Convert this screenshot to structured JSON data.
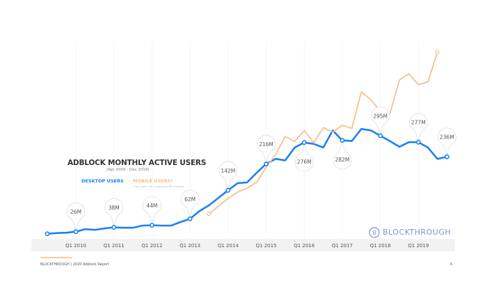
{
  "chart_data": {
    "type": "line",
    "title": "ADBLOCK MONTHLY ACTIVE USERS",
    "subtitle": "(Apr 2009 - Dec 2019)",
    "x_start_year": 2009.25,
    "x_step": 0.25,
    "tick_labels": [
      "Q1 2010",
      "Q1 2011",
      "Q1 2012",
      "Q1 2013",
      "Q1 2014",
      "Q1 2015",
      "Q1 2016",
      "Q1 2017",
      "Q1 2018",
      "Q1 2019"
    ],
    "tick_years": [
      2010,
      2011,
      2012,
      2013,
      2014,
      2015,
      2016,
      2017,
      2018,
      2019
    ],
    "ylim": [
      0,
      560
    ],
    "grid": "vertical",
    "series": [
      {
        "name": "DESKTOP USERS",
        "color": "#1a82f0",
        "start_index": 0,
        "values": [
          20,
          22,
          23,
          26,
          33,
          31,
          35,
          38,
          37,
          37,
          43,
          44,
          43,
          43,
          53,
          62,
          84,
          100,
          121,
          142,
          162,
          164,
          191,
          216,
          230,
          226,
          262,
          276,
          272,
          262,
          310,
          282,
          280,
          314,
          310,
          295,
          280,
          264,
          277,
          277,
          262,
          230,
          236
        ]
      },
      {
        "name": "MOBILE USERS*",
        "color": "#f8bf8c",
        "start_index": 17,
        "values": [
          76,
          98,
          119,
          137,
          148,
          164,
          207,
          242,
          293,
          279,
          310,
          275,
          318,
          305,
          324,
          316,
          418,
          396,
          363,
          357,
          451,
          469,
          438,
          446,
          529
        ]
      }
    ],
    "annotations": [
      {
        "index": 3,
        "label": "26M",
        "pos": "above"
      },
      {
        "index": 7,
        "label": "38M",
        "pos": "above"
      },
      {
        "index": 11,
        "label": "44M",
        "pos": "above"
      },
      {
        "index": 15,
        "label": "62M",
        "pos": "above"
      },
      {
        "index": 19,
        "label": "142M",
        "pos": "above"
      },
      {
        "index": 23,
        "label": "216M",
        "pos": "above"
      },
      {
        "index": 27,
        "label": "276M",
        "pos": "below"
      },
      {
        "index": 31,
        "label": "282M",
        "pos": "below"
      },
      {
        "index": 35,
        "label": "295M",
        "pos": "above"
      },
      {
        "index": 39,
        "label": "277M",
        "pos": "above"
      },
      {
        "index": 42,
        "label": "236M",
        "pos": "above"
      }
    ],
    "legend_note": "* see page 7 for mobile-specific analysis"
  },
  "brand": "BLOCKTHROUGH",
  "footer": "BLOCKTHROUGH | 2020 Adblock Report",
  "page_number": "6"
}
